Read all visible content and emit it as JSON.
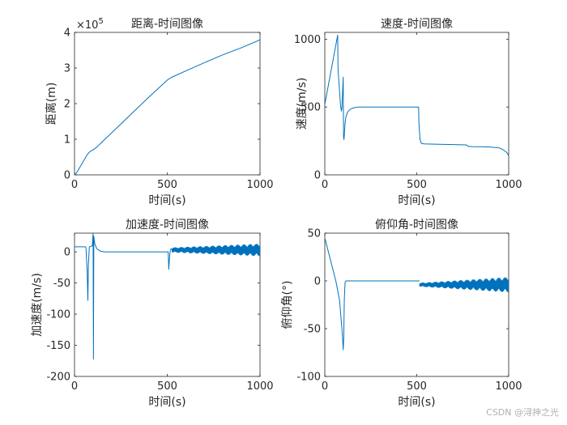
{
  "colors": {
    "series": "#0072BD",
    "axis": "#262626",
    "background": "#ffffff"
  },
  "watermark": "CSDN @浔抻之光",
  "chart_data": [
    {
      "type": "line",
      "title": "距离-时间图像",
      "xlabel": "时间(s)",
      "ylabel": "距离(m)",
      "xlim": [
        0,
        1000
      ],
      "ylim": [
        0,
        4
      ],
      "xticks": [
        0,
        500,
        1000
      ],
      "yticks": [
        0,
        1,
        2,
        3,
        4
      ],
      "exponent_label": "×10^5",
      "series": [
        {
          "name": "distance",
          "x": [
            0,
            10,
            25,
            50,
            70,
            85,
            100,
            120,
            150,
            200,
            300,
            400,
            500,
            520,
            600,
            700,
            800,
            900,
            1000
          ],
          "y": [
            0,
            0.05,
            0.18,
            0.4,
            0.58,
            0.66,
            0.7,
            0.78,
            0.93,
            1.18,
            1.68,
            2.18,
            2.66,
            2.73,
            2.92,
            3.15,
            3.37,
            3.57,
            3.79
          ]
        }
      ]
    },
    {
      "type": "line",
      "title": "速度-时间图像",
      "xlabel": "时间(s)",
      "ylabel": "速度(m/s)",
      "xlim": [
        0,
        1000
      ],
      "ylim": [
        0,
        1050
      ],
      "xticks": [
        0,
        500,
        1000
      ],
      "yticks": [
        0,
        500,
        1000
      ],
      "series": [
        {
          "name": "velocity",
          "x": [
            0,
            70,
            72,
            85,
            90,
            93,
            100,
            102,
            104,
            106,
            110,
            115,
            125,
            140,
            160,
            180,
            200,
            300,
            400,
            510,
            512,
            518,
            525,
            540,
            600,
            700,
            770,
            780,
            800,
            850,
            900,
            950,
            970,
            990,
            1000
          ],
          "y": [
            520,
            1030,
            780,
            520,
            470,
            490,
            720,
            280,
            260,
            290,
            380,
            430,
            465,
            485,
            495,
            500,
            500,
            500,
            500,
            500,
            380,
            260,
            232,
            228,
            226,
            223,
            221,
            210,
            208,
            207,
            205,
            198,
            185,
            165,
            140
          ]
        }
      ]
    },
    {
      "type": "line",
      "title": "加速度-时间图像",
      "xlabel": "时间(s)",
      "ylabel": "加速度(m/s)",
      "xlim": [
        0,
        1000
      ],
      "ylim": [
        -200,
        30
      ],
      "xticks": [
        0,
        500,
        1000
      ],
      "yticks": [
        -200,
        -150,
        -100,
        -50,
        0
      ],
      "series": [
        {
          "name": "acceleration",
          "x": [
            0,
            60,
            62,
            68,
            72,
            75,
            80,
            88,
            92,
            96,
            100,
            102,
            104,
            106,
            110,
            120,
            140,
            160,
            200,
            300,
            400,
            505,
            508,
            512,
            515,
            520,
            525
          ],
          "y": [
            8,
            8,
            5,
            -30,
            -78,
            -20,
            8,
            9,
            9,
            10,
            30,
            -172,
            25,
            20,
            12,
            5,
            1,
            0,
            0,
            0,
            0,
            0,
            -28,
            -10,
            0,
            5,
            4
          ]
        }
      ],
      "noise_band": {
        "x_start": 525,
        "x_end": 1000,
        "center": 3,
        "amp_start": 4,
        "amp_end": 10
      }
    },
    {
      "type": "line",
      "title": "俯仰角-时间图像",
      "xlabel": "时间(s)",
      "ylabel": "俯仰角(°)",
      "xlim": [
        0,
        1000
      ],
      "ylim": [
        -100,
        50
      ],
      "xticks": [
        0,
        500,
        1000
      ],
      "yticks": [
        -100,
        -50,
        0,
        50
      ],
      "series": [
        {
          "name": "pitch",
          "x": [
            0,
            20,
            40,
            60,
            80,
            95,
            100,
            103,
            106,
            110,
            115,
            200,
            300,
            400,
            515
          ],
          "y": [
            45,
            30,
            15,
            0,
            -20,
            -55,
            -72,
            -60,
            -20,
            -2,
            0,
            0,
            0,
            0,
            0
          ]
        }
      ],
      "noise_band": {
        "x_start": 515,
        "x_end": 1000,
        "center": -4,
        "amp_start": 2,
        "amp_end": 8
      }
    }
  ]
}
